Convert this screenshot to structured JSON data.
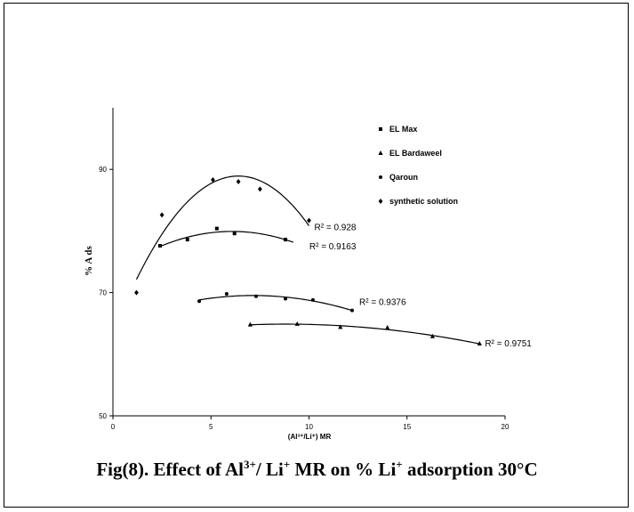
{
  "caption": {
    "prefix": "Fig(8). Effect of Al",
    "sup1": "3+",
    "mid": "/ Li",
    "sup2": "+",
    "mid2": " MR on % Li",
    "sup3": "+",
    "suffix": " adsorption 30°C"
  },
  "chart_data": {
    "type": "scatter",
    "ylabel": "% A ds",
    "xlabel": "(Al³⁺/Li⁺) MR",
    "xlim": [
      0,
      20
    ],
    "ylim": [
      50,
      100
    ],
    "x_ticks": [
      "0",
      "5",
      "10",
      "15",
      "20"
    ],
    "y_ticks": [
      "50",
      "70",
      "90"
    ],
    "legend_position": "top-right",
    "trendline": "polynomial (2nd order)",
    "series": [
      {
        "name": "EL Max",
        "marker": "square",
        "x": [
          2.4,
          3.8,
          5.3,
          6.2,
          8.8
        ],
        "y": [
          77.6,
          78.6,
          80.4,
          79.6,
          78.6
        ],
        "r2_label": "R² = 0.9163",
        "fit_range": [
          2.4,
          9.2
        ]
      },
      {
        "name": "EL Bardaweel",
        "marker": "triangle",
        "x": [
          7.0,
          9.4,
          11.6,
          14.0,
          16.3,
          18.7
        ],
        "y": [
          64.8,
          64.9,
          64.4,
          64.3,
          62.9,
          61.7
        ],
        "r2_label": "R² = 0.9751",
        "fit_range": [
          7.0,
          18.7
        ]
      },
      {
        "name": "Qaroun",
        "marker": "circle",
        "x": [
          4.4,
          5.8,
          7.3,
          8.8,
          10.2,
          12.2
        ],
        "y": [
          68.6,
          69.8,
          69.4,
          69.0,
          68.8,
          67.1
        ],
        "r2_label": "R² = 0.9376",
        "fit_range": [
          4.4,
          12.2
        ]
      },
      {
        "name": "synthetic solution",
        "marker": "diamond",
        "x": [
          1.2,
          2.5,
          5.1,
          6.4,
          7.5,
          10.0
        ],
        "y": [
          70.0,
          82.6,
          88.3,
          88.0,
          86.8,
          81.7
        ],
        "r2_label": "R² = 0.928",
        "fit_range": [
          1.2,
          10.0
        ]
      }
    ],
    "colors": {
      "marker": "#000000",
      "line": "#000000",
      "background": "#ffffff"
    }
  }
}
